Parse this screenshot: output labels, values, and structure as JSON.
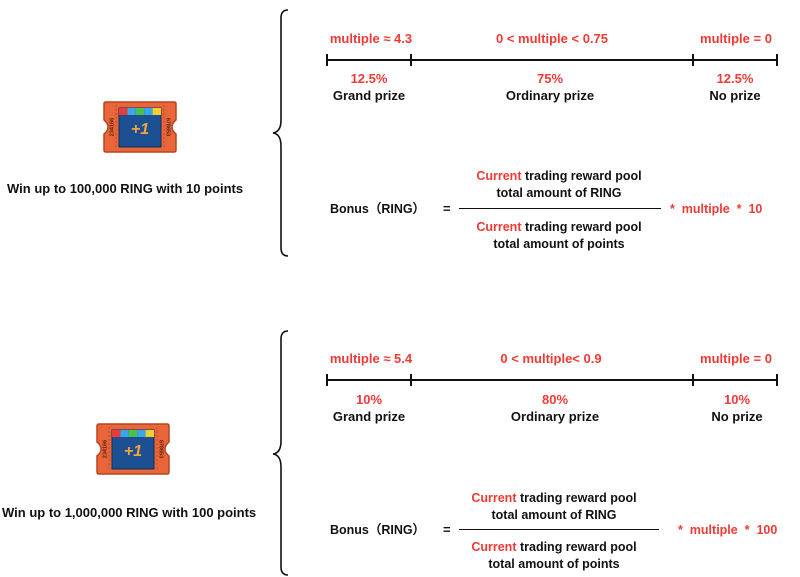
{
  "colors": {
    "accent_red": "#f03a35",
    "text": "#111111",
    "ticket_orange": "#e8663a",
    "ticket_blue": "#1d4f93"
  },
  "tiers": [
    {
      "ticket": {
        "left_number": "234166",
        "right_number": "678653",
        "center_label": "+1"
      },
      "caption": "Win up to 100,000 RING with 10 points",
      "ranges": [
        {
          "condition": "multiple ≈ 4.3",
          "percent": "12.5%",
          "prize": "Grand prize"
        },
        {
          "condition": "0 < multiple < 0.75",
          "percent": "75%",
          "prize": "Ordinary prize"
        },
        {
          "condition": "multiple = 0",
          "percent": "12.5%",
          "prize": "No prize"
        }
      ],
      "formula": {
        "lhs": "Bonus（RING）",
        "equals": "=",
        "num_highlight": "Current",
        "num_line1_rest": " trading reward pool",
        "num_line2": "total amount of RING",
        "den_highlight": "Current",
        "den_line1_rest": " trading reward pool",
        "den_line2": "total amount of points",
        "multiplier": "*  multiple  *  10"
      }
    },
    {
      "ticket": {
        "left_number": "234166",
        "right_number": "678653",
        "center_label": "+1"
      },
      "caption": "Win up to 1,000,000 RING with 100 points",
      "ranges": [
        {
          "condition": "multiple ≈ 5.4",
          "percent": "10%",
          "prize": "Grand prize"
        },
        {
          "condition": "0 < multiple< 0.9",
          "percent": "80%",
          "prize": "Ordinary prize"
        },
        {
          "condition": "multiple = 0",
          "percent": "10%",
          "prize": "No prize"
        }
      ],
      "formula": {
        "lhs": "Bonus（RING）",
        "equals": "=",
        "num_highlight": "Current",
        "num_line1_rest": " trading reward pool",
        "num_line2": "total amount of RING",
        "den_highlight": "Current",
        "den_line1_rest": " trading reward pool",
        "den_line2": "total amount of points",
        "multiplier": "*  multiple  *  100"
      }
    }
  ]
}
